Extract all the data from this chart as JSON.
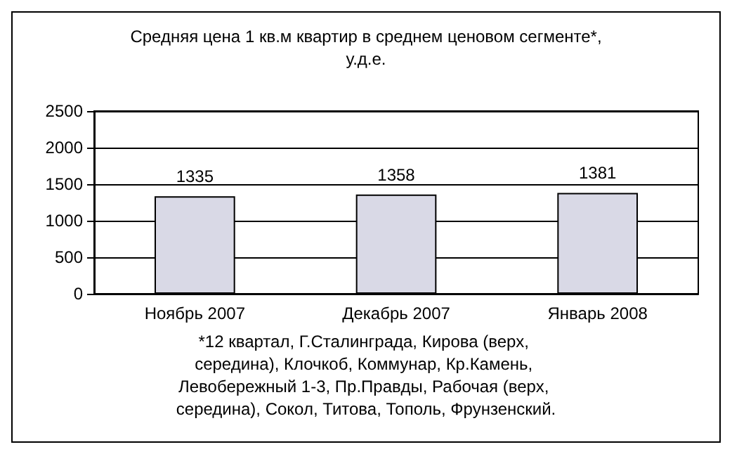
{
  "chart_data": {
    "type": "bar",
    "title": "Средняя цена 1 кв.м квартир в среднем ценовом сегменте*,\nу.д.е.",
    "categories": [
      "Ноябрь 2007",
      "Декабрь 2007",
      "Январь 2008"
    ],
    "values": [
      1335,
      1358,
      1381
    ],
    "color": "#d9d9e6",
    "data_labels": true,
    "ylim": [
      0,
      2500
    ],
    "yticks": [
      0,
      500,
      1000,
      1500,
      2000,
      2500
    ],
    "grid": "y",
    "annotations": [
      "*12 квартал, Г.Сталинграда, Кирова (верх, середина), Клочкоб, Коммунар, Кр.Камень, Левобережный 1-3, Пр.Правды, Рабочая (верх, середина), Сокол, Титова, Тополь, Фрунзенский."
    ]
  }
}
